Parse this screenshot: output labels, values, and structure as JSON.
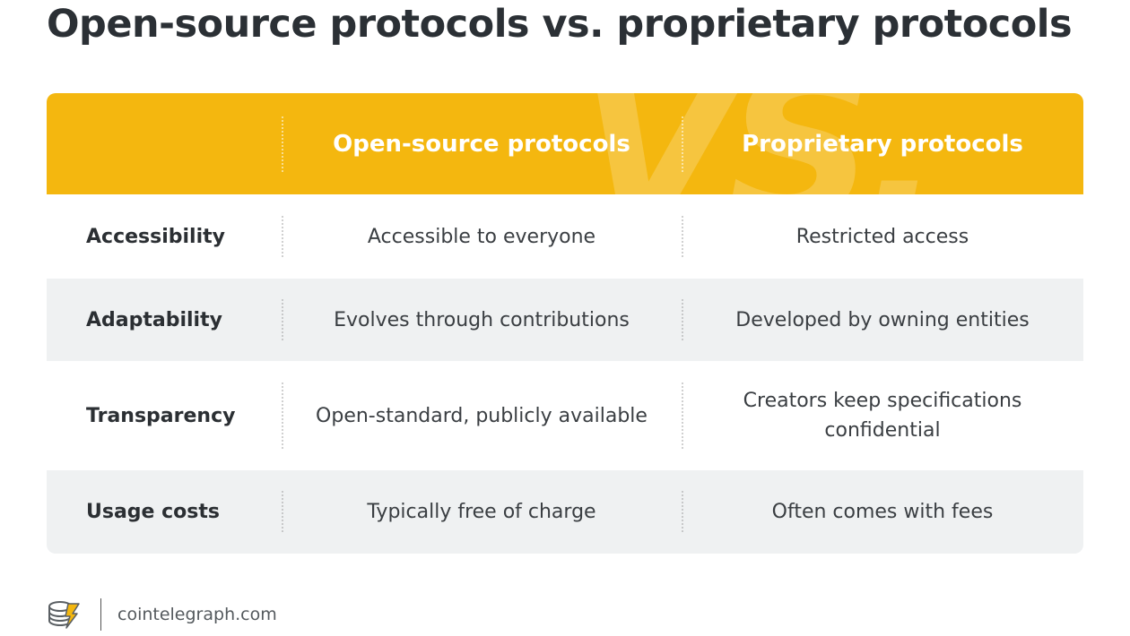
{
  "title": "Open-source protocols vs. proprietary protocols",
  "watermark": "VS.",
  "columns": [
    "Open-source protocols",
    "Proprietary protocols"
  ],
  "rows": [
    {
      "label": "Accessibility",
      "open": "Accessible to everyone",
      "proprietary": "Restricted access"
    },
    {
      "label": "Adaptability",
      "open": "Evolves through contributions",
      "proprietary": "Developed by owning entities"
    },
    {
      "label": "Transparency",
      "open": "Open-standard, publicly available",
      "proprietary": "Creators keep specifications confidential"
    },
    {
      "label": "Usage costs",
      "open": "Typically free of charge",
      "proprietary": "Often comes with fees"
    }
  ],
  "footer": {
    "site": "cointelegraph.com",
    "logo_icon": "cointelegraph-logo-icon"
  },
  "colors": {
    "header": "#f4b70f",
    "shaded_row": "#eff1f2",
    "title": "#2b3035"
  }
}
